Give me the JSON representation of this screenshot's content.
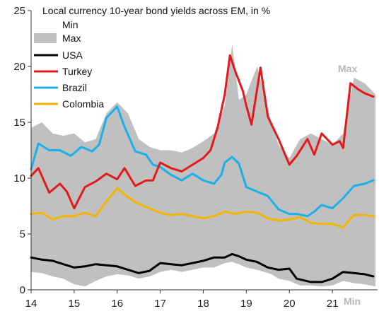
{
  "chart_data": {
    "type": "line",
    "title": "Local currency 10-year bond yields across EM, in %",
    "x_tick_labels": [
      "14",
      "15",
      "16",
      "17",
      "18",
      "19",
      "20",
      "21"
    ],
    "x_ticks": [
      2014,
      2015,
      2016,
      2017,
      2018,
      2019,
      2020,
      2021
    ],
    "xlim": [
      2014,
      2022.05
    ],
    "ylim": [
      0,
      25
    ],
    "y_ticks": [
      0,
      5,
      10,
      15,
      20,
      25
    ],
    "xlabel": "",
    "ylabel": "",
    "grid": false,
    "legend_position": "top-left",
    "legend": [
      "Min",
      "Max",
      "USA",
      "Turkey",
      "Brazil",
      "Colombia"
    ],
    "band_labels": {
      "max": "Max",
      "min": "Min"
    },
    "range_band": {
      "name_low": "Min",
      "name_high": "Max",
      "color": "#c0c0c0",
      "x": [
        2014.0,
        2014.25,
        2014.5,
        2014.75,
        2015.0,
        2015.25,
        2015.5,
        2015.75,
        2016.0,
        2016.25,
        2016.5,
        2016.75,
        2017.0,
        2017.25,
        2017.5,
        2017.75,
        2018.0,
        2018.25,
        2018.5,
        2018.67,
        2018.83,
        2019.0,
        2019.25,
        2019.42,
        2019.58,
        2019.75,
        2020.0,
        2020.25,
        2020.5,
        2020.75,
        2021.0,
        2021.25,
        2021.5,
        2021.75,
        2022.0
      ],
      "max": [
        14.5,
        15.0,
        14.0,
        13.8,
        14.0,
        13.2,
        13.5,
        15.8,
        16.8,
        15.8,
        13.5,
        12.8,
        12.5,
        12.5,
        12.3,
        12.7,
        13.3,
        14.0,
        16.5,
        22.0,
        17.0,
        17.5,
        20.0,
        17.5,
        15.0,
        13.0,
        11.8,
        13.5,
        14.0,
        13.5,
        13.0,
        14.0,
        19.0,
        18.5,
        17.5
      ],
      "min": [
        1.6,
        1.5,
        1.2,
        1.0,
        0.5,
        0.3,
        0.8,
        1.2,
        1.4,
        1.3,
        1.0,
        1.2,
        1.6,
        1.8,
        1.6,
        1.8,
        2.0,
        2.0,
        2.4,
        2.5,
        2.3,
        2.0,
        1.8,
        1.6,
        1.4,
        1.0,
        0.8,
        0.4,
        0.4,
        0.3,
        0.4,
        0.8,
        0.6,
        0.5,
        0.3
      ]
    },
    "series": [
      {
        "name": "USA",
        "color": "#000000",
        "x": [
          2014.0,
          2014.25,
          2014.5,
          2014.75,
          2015.0,
          2015.25,
          2015.5,
          2015.75,
          2016.0,
          2016.25,
          2016.5,
          2016.75,
          2017.0,
          2017.25,
          2017.5,
          2017.75,
          2018.0,
          2018.25,
          2018.5,
          2018.67,
          2018.83,
          2019.0,
          2019.25,
          2019.5,
          2019.75,
          2020.0,
          2020.17,
          2020.5,
          2020.75,
          2021.0,
          2021.25,
          2021.5,
          2021.75,
          2021.95
        ],
        "values": [
          2.9,
          2.7,
          2.6,
          2.3,
          2.0,
          2.1,
          2.3,
          2.2,
          2.1,
          1.8,
          1.5,
          1.7,
          2.4,
          2.3,
          2.2,
          2.4,
          2.6,
          2.9,
          2.9,
          3.2,
          3.0,
          2.7,
          2.5,
          2.0,
          1.8,
          1.9,
          1.0,
          0.7,
          0.7,
          1.0,
          1.6,
          1.5,
          1.4,
          1.2
        ]
      },
      {
        "name": "Turkey",
        "color": "#e31a1c",
        "x": [
          2014.0,
          2014.17,
          2014.42,
          2014.67,
          2014.83,
          2015.0,
          2015.25,
          2015.5,
          2015.75,
          2016.0,
          2016.17,
          2016.42,
          2016.67,
          2016.83,
          2017.0,
          2017.25,
          2017.5,
          2017.75,
          2018.0,
          2018.17,
          2018.33,
          2018.5,
          2018.62,
          2018.75,
          2018.92,
          2019.0,
          2019.12,
          2019.33,
          2019.5,
          2019.75,
          2020.0,
          2020.17,
          2020.42,
          2020.58,
          2020.75,
          2021.0,
          2021.17,
          2021.25,
          2021.42,
          2021.58,
          2021.75,
          2021.95
        ],
        "values": [
          10.2,
          10.9,
          8.7,
          9.5,
          8.8,
          7.3,
          9.2,
          9.7,
          10.4,
          9.9,
          10.9,
          9.3,
          9.8,
          9.8,
          11.4,
          10.9,
          10.6,
          11.2,
          11.8,
          12.5,
          14.5,
          17.5,
          21.0,
          19.5,
          17.8,
          16.5,
          14.8,
          19.9,
          15.5,
          13.5,
          11.2,
          12.0,
          13.5,
          12.1,
          14.0,
          13.0,
          13.3,
          12.7,
          18.5,
          18.0,
          17.6,
          17.3
        ]
      },
      {
        "name": "Brazil",
        "color": "#1ab0e8",
        "x": [
          2014.0,
          2014.17,
          2014.42,
          2014.67,
          2014.92,
          2015.17,
          2015.42,
          2015.58,
          2015.75,
          2016.0,
          2016.17,
          2016.42,
          2016.67,
          2016.83,
          2017.0,
          2017.25,
          2017.5,
          2017.75,
          2018.0,
          2018.25,
          2018.42,
          2018.5,
          2018.67,
          2018.83,
          2019.0,
          2019.25,
          2019.5,
          2019.75,
          2020.0,
          2020.17,
          2020.42,
          2020.58,
          2020.75,
          2021.0,
          2021.25,
          2021.5,
          2021.75,
          2021.95
        ],
        "values": [
          10.8,
          13.1,
          12.5,
          12.5,
          12.0,
          12.8,
          12.4,
          13.0,
          15.4,
          16.4,
          14.6,
          12.4,
          12.1,
          11.2,
          11.0,
          10.3,
          9.8,
          10.4,
          9.8,
          9.5,
          10.3,
          11.4,
          11.9,
          11.3,
          9.2,
          8.8,
          8.4,
          7.2,
          6.8,
          6.8,
          6.6,
          7.0,
          7.6,
          7.3,
          8.2,
          9.3,
          9.5,
          9.8
        ]
      },
      {
        "name": "Colombia",
        "color": "#f2b400",
        "x": [
          2014.0,
          2014.25,
          2014.5,
          2014.75,
          2015.0,
          2015.25,
          2015.5,
          2015.75,
          2016.0,
          2016.25,
          2016.5,
          2016.75,
          2017.0,
          2017.25,
          2017.5,
          2017.75,
          2018.0,
          2018.25,
          2018.5,
          2018.75,
          2019.0,
          2019.25,
          2019.5,
          2019.75,
          2020.0,
          2020.25,
          2020.5,
          2020.75,
          2021.0,
          2021.25,
          2021.5,
          2021.75,
          2021.95
        ],
        "values": [
          6.8,
          6.9,
          6.3,
          6.6,
          6.6,
          6.9,
          6.6,
          7.9,
          9.1,
          8.3,
          7.7,
          7.3,
          6.9,
          6.7,
          6.8,
          6.6,
          6.4,
          6.6,
          7.0,
          6.8,
          7.0,
          6.9,
          6.4,
          6.2,
          6.3,
          6.5,
          6.0,
          5.9,
          5.9,
          5.6,
          6.7,
          6.7,
          6.6
        ]
      }
    ]
  }
}
